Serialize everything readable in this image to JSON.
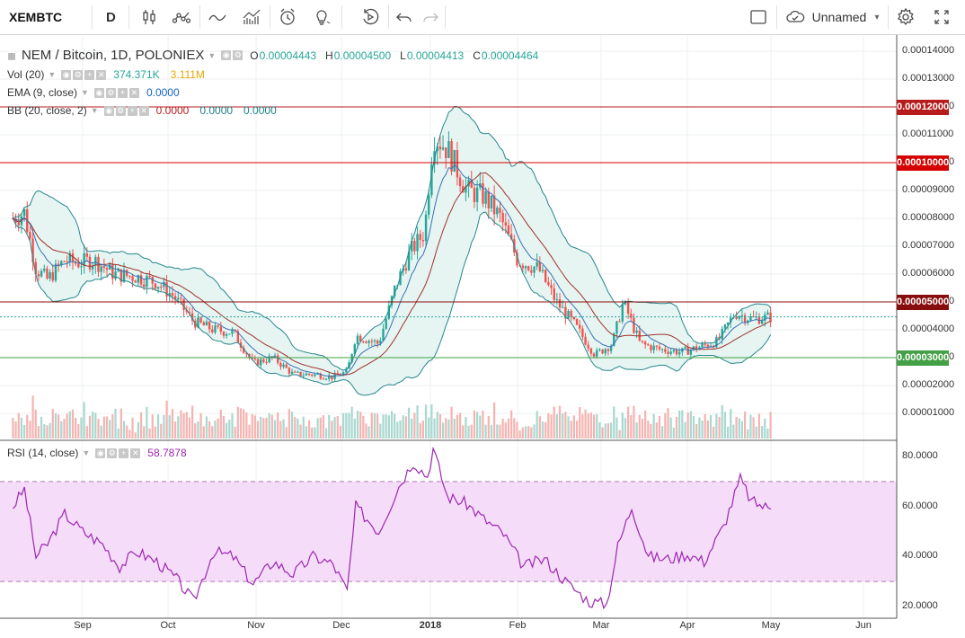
{
  "toolbar": {
    "symbol": "XEMBTC",
    "interval": "D",
    "layout_name": "Unnamed",
    "icons": [
      "chart-type-icon",
      "indicator-icon",
      "line-icon",
      "bar-pattern-icon",
      "alert-icon",
      "idea-icon",
      "replay-icon",
      "undo-icon",
      "redo-icon"
    ],
    "right_icons": [
      "fullscreen-square-icon",
      "cloud-icon",
      "chevron-down-icon",
      "settings-gear-icon",
      "expand-icon"
    ]
  },
  "legend": {
    "title": "NEM / Bitcoin, 1D, POLONIEX",
    "ohlc": {
      "O": "0.00004443",
      "H": "0.00004500",
      "L": "0.00004413",
      "C": "0.00004464"
    },
    "vol": {
      "name": "Vol (20)",
      "v1": "374.371K",
      "v2": "3.111M"
    },
    "ema": {
      "name": "EMA (9, close)",
      "v1": "0.0000"
    },
    "bb": {
      "name": "BB (20, close, 2)",
      "v1": "0.0000",
      "v2": "0.0000",
      "v3": "0.0000"
    },
    "rsi": {
      "name": "RSI (14, close)",
      "v1": "58.7878"
    }
  },
  "price_axis": [
    "0.00014000",
    "0.00013000",
    "0.00012000",
    "0.00011000",
    "0.00010000",
    "0.00009000",
    "0.00008000",
    "0.00007000",
    "0.00006000",
    "0.00005000",
    "0.00004000",
    "0.00003000",
    "0.00002000",
    "0.00001000"
  ],
  "rsi_axis": [
    "80.0000",
    "60.0000",
    "40.0000",
    "20.0000"
  ],
  "horizontal_lines": [
    {
      "value": "0.00012000",
      "color": "#b71c1c"
    },
    {
      "value": "0.00010000",
      "color": "#d50000"
    },
    {
      "value": "0.00005000",
      "color": "#880e0e"
    },
    {
      "value": "0.00003000",
      "color": "#43a047"
    }
  ],
  "x_axis": [
    "Sep",
    "Oct",
    "Nov",
    "Dec",
    "2018",
    "Feb",
    "Mar",
    "Apr",
    "May",
    "Jun"
  ],
  "colors": {
    "up": "#26a69a",
    "down": "#ef5350",
    "bb": "#26868c",
    "bb_fill": "#e3f4f1",
    "ema": "#a0312b",
    "rsi": "#9c27b0",
    "rsi_band": "#f5dcf9"
  },
  "chart_data": [
    {
      "type": "candlestick",
      "title": "NEM / Bitcoin, 1D, POLONIEX",
      "ylim": [
        0.0,
        0.000145
      ],
      "x_ticks": [
        "Sep",
        "Oct",
        "Nov",
        "Dec",
        "2018",
        "Feb",
        "Mar",
        "Apr",
        "May",
        "Jun"
      ],
      "close_path": [
        [
          "Aug 8",
          8e-05
        ],
        [
          "Aug 12",
          8.2e-05
        ],
        [
          "Aug 16",
          6.2e-05
        ],
        [
          "Aug 20",
          5.8e-05
        ],
        [
          "Aug 26",
          6.5e-05
        ],
        [
          "Aug 30",
          6.4e-05
        ],
        [
          "Sep 5",
          6.5e-05
        ],
        [
          "Sep 12",
          6e-05
        ],
        [
          "Sep 20",
          5.9e-05
        ],
        [
          "Sep 27",
          5.7e-05
        ],
        [
          "Oct 3",
          5.2e-05
        ],
        [
          "Oct 10",
          4.3e-05
        ],
        [
          "Oct 17",
          4e-05
        ],
        [
          "Oct 24",
          3.9e-05
        ],
        [
          "Oct 31",
          2.8e-05
        ],
        [
          "Nov 7",
          3e-05
        ],
        [
          "Nov 14",
          2.4e-05
        ],
        [
          "Nov 21",
          2.4e-05
        ],
        [
          "Nov 28",
          2.3e-05
        ],
        [
          "Dec 3",
          2.5e-05
        ],
        [
          "Dec 6",
          3.8e-05
        ],
        [
          "Dec 14",
          3.5e-05
        ],
        [
          "Dec 20",
          5.6e-05
        ],
        [
          "Dec 25",
          6.8e-05
        ],
        [
          "Dec 30",
          7.5e-05
        ],
        [
          "Jan 2",
          0.00011
        ],
        [
          "Jan 7",
          0.000105
        ],
        [
          "Jan 14",
          9e-05
        ],
        [
          "Jan 20",
          8.8e-05
        ],
        [
          "Jan 26",
          8e-05
        ],
        [
          "Feb 1",
          6.5e-05
        ],
        [
          "Feb 8",
          6.2e-05
        ],
        [
          "Feb 14",
          5e-05
        ],
        [
          "Feb 20",
          4.2e-05
        ],
        [
          "Feb 27",
          3.1e-05
        ],
        [
          "Mar 5",
          3.5e-05
        ],
        [
          "Mar 9",
          5e-05
        ],
        [
          "Mar 15",
          3.5e-05
        ],
        [
          "Mar 22",
          3.3e-05
        ],
        [
          "Mar 30",
          3.2e-05
        ],
        [
          "Apr 6",
          3.4e-05
        ],
        [
          "Apr 12",
          3.6e-05
        ],
        [
          "Apr 18",
          4.6e-05
        ],
        [
          "Apr 24",
          4.4e-05
        ],
        [
          "May 1",
          4.46e-05
        ]
      ]
    },
    {
      "type": "line",
      "title": "RSI (14, close)",
      "ylim": [
        15,
        85
      ],
      "band": [
        30,
        70
      ],
      "values": [
        [
          "Aug 8",
          60
        ],
        [
          "Aug 12",
          67
        ],
        [
          "Aug 16",
          40
        ],
        [
          "Aug 20",
          45
        ],
        [
          "Aug 26",
          57
        ],
        [
          "Sep 1",
          50
        ],
        [
          "Sep 8",
          45
        ],
        [
          "Sep 14",
          36
        ],
        [
          "Sep 20",
          42
        ],
        [
          "Sep 27",
          38
        ],
        [
          "Oct 4",
          31
        ],
        [
          "Oct 10",
          22
        ],
        [
          "Oct 17",
          42
        ],
        [
          "Oct 24",
          40
        ],
        [
          "Oct 31",
          29
        ],
        [
          "Nov 7",
          38
        ],
        [
          "Nov 14",
          33
        ],
        [
          "Nov 21",
          40
        ],
        [
          "Nov 28",
          37
        ],
        [
          "Dec 3",
          26
        ],
        [
          "Dec 6",
          60
        ],
        [
          "Dec 14",
          50
        ],
        [
          "Dec 21",
          68
        ],
        [
          "Dec 26",
          78
        ],
        [
          "Dec 31",
          72
        ],
        [
          "Jan 2",
          83
        ],
        [
          "Jan 7",
          64
        ],
        [
          "Jan 14",
          61
        ],
        [
          "Jan 20",
          55
        ],
        [
          "Jan 27",
          49
        ],
        [
          "Feb 3",
          36
        ],
        [
          "Feb 10",
          39
        ],
        [
          "Feb 18",
          29
        ],
        [
          "Feb 25",
          22
        ],
        [
          "Mar 3",
          21
        ],
        [
          "Mar 7",
          44
        ],
        [
          "Mar 12",
          60
        ],
        [
          "Mar 18",
          40
        ],
        [
          "Mar 25",
          39
        ],
        [
          "Apr 1",
          41
        ],
        [
          "Apr 7",
          38
        ],
        [
          "Apr 14",
          52
        ],
        [
          "Apr 20",
          71
        ],
        [
          "Apr 24",
          62
        ],
        [
          "May 1",
          59
        ]
      ]
    }
  ]
}
